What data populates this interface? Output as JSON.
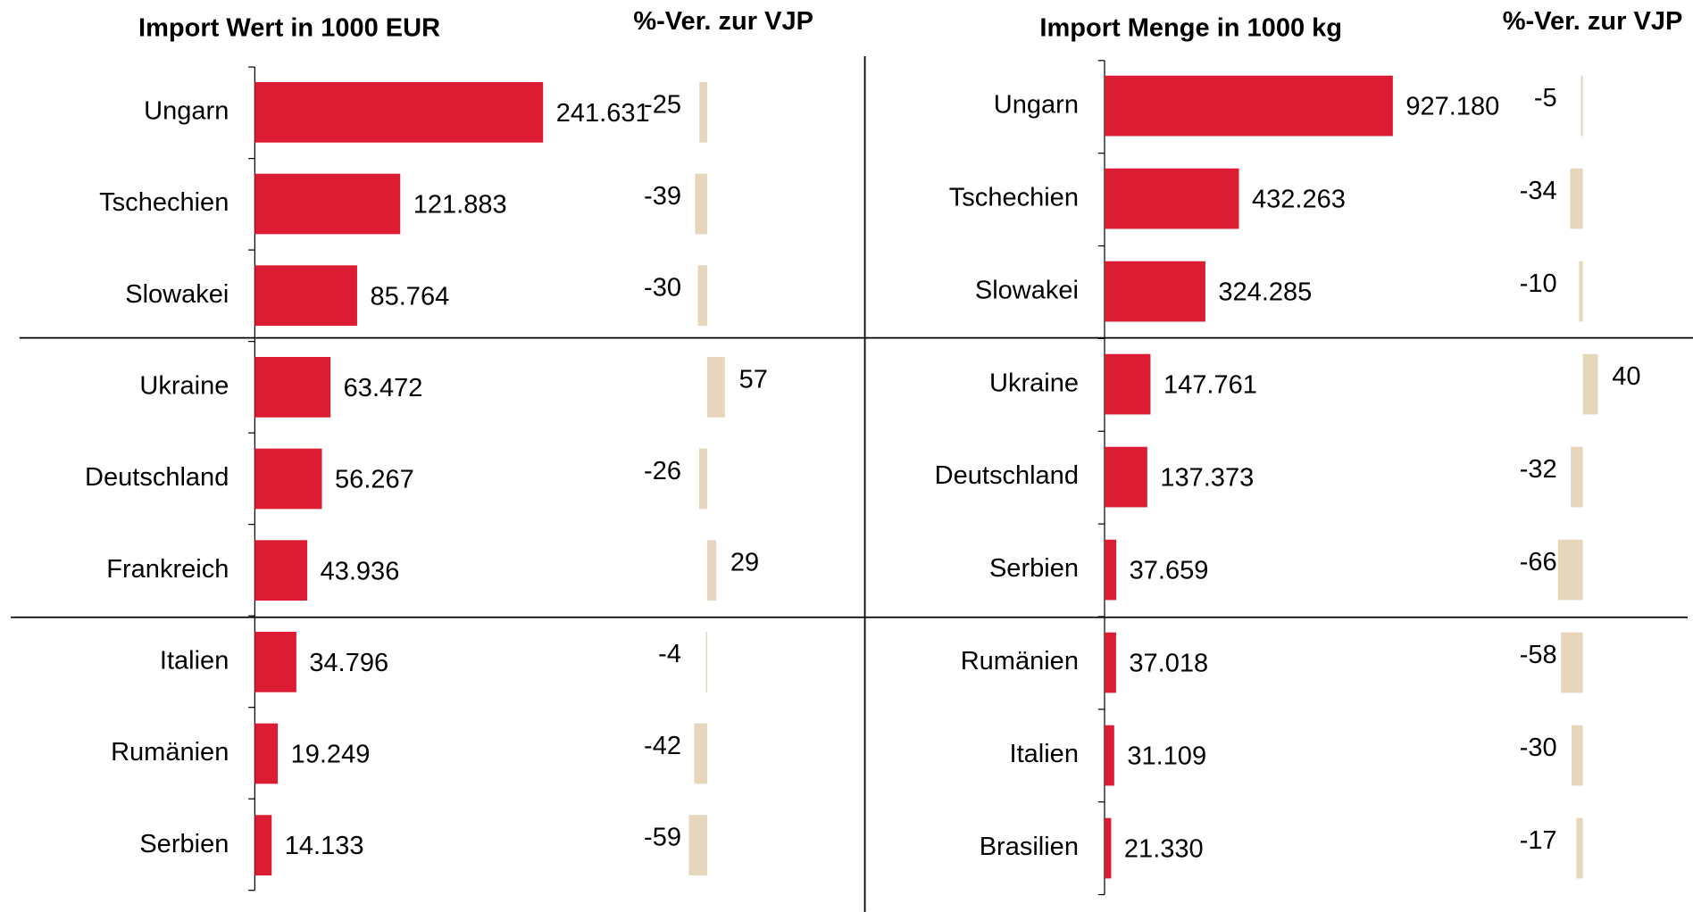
{
  "chart_data": [
    {
      "type": "bar",
      "orientation": "horizontal",
      "title": "Import Wert in 1000 EUR",
      "categories": [
        "Ungarn",
        "Tschechien",
        "Slowakei",
        "Ukraine",
        "Deutschland",
        "Frankreich",
        "Italien",
        "Rumänien",
        "Serbien"
      ],
      "values": [
        241631,
        121883,
        85764,
        63472,
        56267,
        43936,
        34796,
        19249,
        14133
      ],
      "value_labels": [
        "241.631",
        "121.883",
        "85.764",
        "63.472",
        "56.267",
        "43.936",
        "34.796",
        "19.249",
        "14.133"
      ],
      "color": "#dc1c32",
      "change_title": "%-Ver. zur VJP",
      "change_values": [
        -25,
        -39,
        -30,
        57,
        -26,
        29,
        -4,
        -42,
        -59
      ],
      "change_color": "#e6d6bc"
    },
    {
      "type": "bar",
      "orientation": "horizontal",
      "title": "Import Menge in 1000 kg",
      "categories": [
        "Ungarn",
        "Tschechien",
        "Slowakei",
        "Ukraine",
        "Deutschland",
        "Serbien",
        "Rumänien",
        "Italien",
        "Brasilien"
      ],
      "values": [
        927180,
        432263,
        324285,
        147761,
        137373,
        37659,
        37018,
        31109,
        21330
      ],
      "value_labels": [
        "927.180",
        "432.263",
        "324.285",
        "147.761",
        "137.373",
        "37.659",
        "37.018",
        "31.109",
        "21.330"
      ],
      "color": "#dc1c32",
      "change_title": "%-Ver. zur VJP",
      "change_values": [
        -5,
        -34,
        -10,
        40,
        -32,
        -66,
        -58,
        -30,
        -17
      ],
      "change_color": "#e6d6bc"
    }
  ]
}
